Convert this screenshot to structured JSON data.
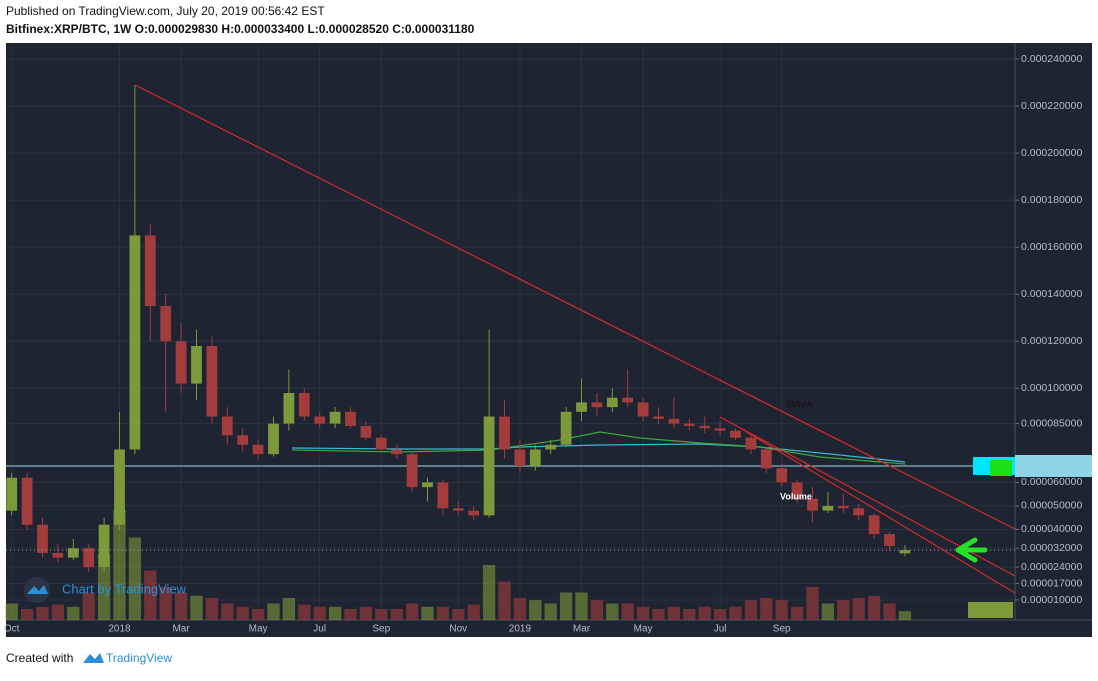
{
  "chart_data": {
    "type": "candlestick",
    "title": "Published on TradingView.com, July 20, 2019 00:56:42 EST",
    "subtitle": "Bitfinex:XRP/BTC, 1W  O:0.000029830 H:0.000033400 L:0.000028520 C:0.000031180",
    "categories": [
      "Oct",
      null,
      null,
      null,
      null,
      null,
      null,
      "2018",
      null,
      null,
      null,
      "Mar",
      null,
      null,
      null,
      null,
      "May",
      null,
      null,
      null,
      "Jul",
      null,
      null,
      null,
      "Sep",
      null,
      null,
      null,
      null,
      "Nov",
      null,
      null,
      null,
      "2019",
      null,
      null,
      null,
      "Mar",
      null,
      null,
      null,
      "May",
      null,
      null,
      null,
      null,
      "Jul",
      null,
      null,
      null,
      "Sep",
      null,
      null,
      null,
      null,
      null,
      null,
      null,
      null
    ],
    "open": [
      4.8e-05,
      6.2e-05,
      4.2e-05,
      3e-05,
      2.8e-05,
      3.2e-05,
      2.4e-05,
      4.2e-05,
      7.4e-05,
      0.000165,
      0.000135,
      0.00012,
      0.000102,
      0.000118,
      8.8e-05,
      8e-05,
      7.6e-05,
      7.2e-05,
      8.5e-05,
      9.8e-05,
      8.8e-05,
      8.5e-05,
      9e-05,
      8.4e-05,
      7.9e-05,
      7.4e-05,
      7.2e-05,
      5.8e-05,
      6e-05,
      4.9e-05,
      4.8e-05,
      4.6e-05,
      8.8e-05,
      7.4e-05,
      6.7e-05,
      7.4e-05,
      7.6e-05,
      9e-05,
      9.4e-05,
      9.2e-05,
      9.6e-05,
      9.4e-05,
      8.8e-05,
      8.7e-05,
      8.5e-05,
      8.4e-05,
      8.3e-05,
      8.2e-05,
      7.9e-05,
      7.4e-05,
      6.6e-05,
      6e-05,
      5.3e-05,
      4.8e-05,
      5e-05,
      4.9e-05,
      4.6e-05,
      3.8e-05,
      2.983e-05
    ],
    "high": [
      6.4e-05,
      6.4e-05,
      4.5e-05,
      3.4e-05,
      3.6e-05,
      3.4e-05,
      4.5e-05,
      9e-05,
      0.000229,
      0.00017,
      0.00014,
      0.000128,
      0.000125,
      0.000122,
      9.2e-05,
      8.3e-05,
      7.8e-05,
      8.8e-05,
      0.000108,
      0.0001,
      9e-05,
      9.2e-05,
      9.2e-05,
      8.6e-05,
      8e-05,
      7.6e-05,
      7.3e-05,
      6.2e-05,
      6.1e-05,
      5.2e-05,
      5e-05,
      0.000125,
      9.5e-05,
      7.8e-05,
      7.6e-05,
      7.8e-05,
      9.2e-05,
      0.000104,
      9.8e-05,
      0.0001,
      0.000108,
      9.6e-05,
      9.2e-05,
      9.6e-05,
      8.7e-05,
      8.8e-05,
      8.6e-05,
      8.3e-05,
      8e-05,
      7.5e-05,
      6.8e-05,
      6.1e-05,
      5.8e-05,
      5.6e-05,
      5.5e-05,
      5.1e-05,
      4.7e-05,
      3.9e-05,
      3.34e-05
    ],
    "low": [
      4.6e-05,
      4e-05,
      2.8e-05,
      2.6e-05,
      2.7e-05,
      2.2e-05,
      2.2e-05,
      4e-05,
      7.2e-05,
      0.00012,
      9e-05,
      9.8e-05,
      9.5e-05,
      8.5e-05,
      7.6e-05,
      7.3e-05,
      7e-05,
      7.1e-05,
      8.2e-05,
      8.6e-05,
      8.3e-05,
      8.3e-05,
      8.3e-05,
      7.8e-05,
      7.3e-05,
      7e-05,
      5.6e-05,
      5.2e-05,
      4.6e-05,
      4.6e-05,
      4.4e-05,
      4.5e-05,
      7e-05,
      6.4e-05,
      6.5e-05,
      7.2e-05,
      7.5e-05,
      8.6e-05,
      8.8e-05,
      9e-05,
      9.2e-05,
      8.6e-05,
      8.5e-05,
      8.3e-05,
      8.2e-05,
      8.1e-05,
      8e-05,
      7.8e-05,
      7.2e-05,
      6.4e-05,
      5.8e-05,
      5.1e-05,
      4.3e-05,
      4.7e-05,
      4.7e-05,
      4.4e-05,
      3.6e-05,
      3.1e-05,
      2.852e-05
    ],
    "close": [
      6.2e-05,
      4.2e-05,
      3e-05,
      2.8e-05,
      3.2e-05,
      2.4e-05,
      4.2e-05,
      7.4e-05,
      0.000165,
      0.000135,
      0.00012,
      0.000102,
      0.000118,
      8.8e-05,
      8e-05,
      7.6e-05,
      7.2e-05,
      8.5e-05,
      9.8e-05,
      8.8e-05,
      8.5e-05,
      9e-05,
      8.4e-05,
      7.9e-05,
      7.4e-05,
      7.2e-05,
      5.8e-05,
      6e-05,
      4.9e-05,
      4.8e-05,
      4.6e-05,
      8.8e-05,
      7.4e-05,
      6.7e-05,
      7.4e-05,
      7.6e-05,
      9e-05,
      9.4e-05,
      9.2e-05,
      9.6e-05,
      9.4e-05,
      8.8e-05,
      8.7e-05,
      8.5e-05,
      8.4e-05,
      8.3e-05,
      8.2e-05,
      7.9e-05,
      7.4e-05,
      6.6e-05,
      6e-05,
      5.3e-05,
      4.8e-05,
      5e-05,
      4.9e-05,
      4.6e-05,
      3.8e-05,
      3.3e-05,
      3.118e-05
    ],
    "volume": [
      15,
      10,
      12,
      14,
      12,
      25,
      60,
      100,
      75,
      45,
      30,
      25,
      22,
      20,
      15,
      12,
      10,
      15,
      20,
      14,
      12,
      12,
      10,
      12,
      10,
      10,
      15,
      12,
      12,
      10,
      14,
      50,
      35,
      20,
      18,
      15,
      25,
      25,
      18,
      15,
      15,
      12,
      10,
      12,
      10,
      12,
      10,
      12,
      18,
      20,
      18,
      12,
      30,
      15,
      18,
      20,
      22,
      15,
      8
    ],
    "up_color": "#7d9a3a",
    "down_color": "#a33c3c",
    "ylim": [
      1.5e-06,
      0.0002468
    ],
    "yticks": [
      {
        "value": 0.00024,
        "label": "0.000240000"
      },
      {
        "value": 0.00022,
        "label": "0.000220000"
      },
      {
        "value": 0.0002,
        "label": "0.000200000"
      },
      {
        "value": 0.00018,
        "label": "0.000180000"
      },
      {
        "value": 0.00016,
        "label": "0.000160000"
      },
      {
        "value": 0.00014,
        "label": "0.000140000"
      },
      {
        "value": 0.00012,
        "label": "0.000120000"
      },
      {
        "value": 0.0001,
        "label": "0.000100000"
      },
      {
        "value": 8.5e-05,
        "label": "0.000085000"
      },
      {
        "value": 6e-05,
        "label": "0.000060000"
      },
      {
        "value": 5e-05,
        "label": "0.000050000"
      },
      {
        "value": 4e-05,
        "label": "0.000040000"
      },
      {
        "value": 3.2e-05,
        "label": "0.000032000"
      },
      {
        "value": 2.4e-05,
        "label": "0.000024000"
      },
      {
        "value": 1.7e-05,
        "label": "0.000017000"
      },
      {
        "value": 1e-05,
        "label": "0.000010000"
      }
    ],
    "grid": true,
    "indicator_label": "SMMA",
    "volume_label": "Volume",
    "watermark": "Chart by TradingView"
  },
  "footer": {
    "created_with": "Created with",
    "brand": "TradingView"
  }
}
